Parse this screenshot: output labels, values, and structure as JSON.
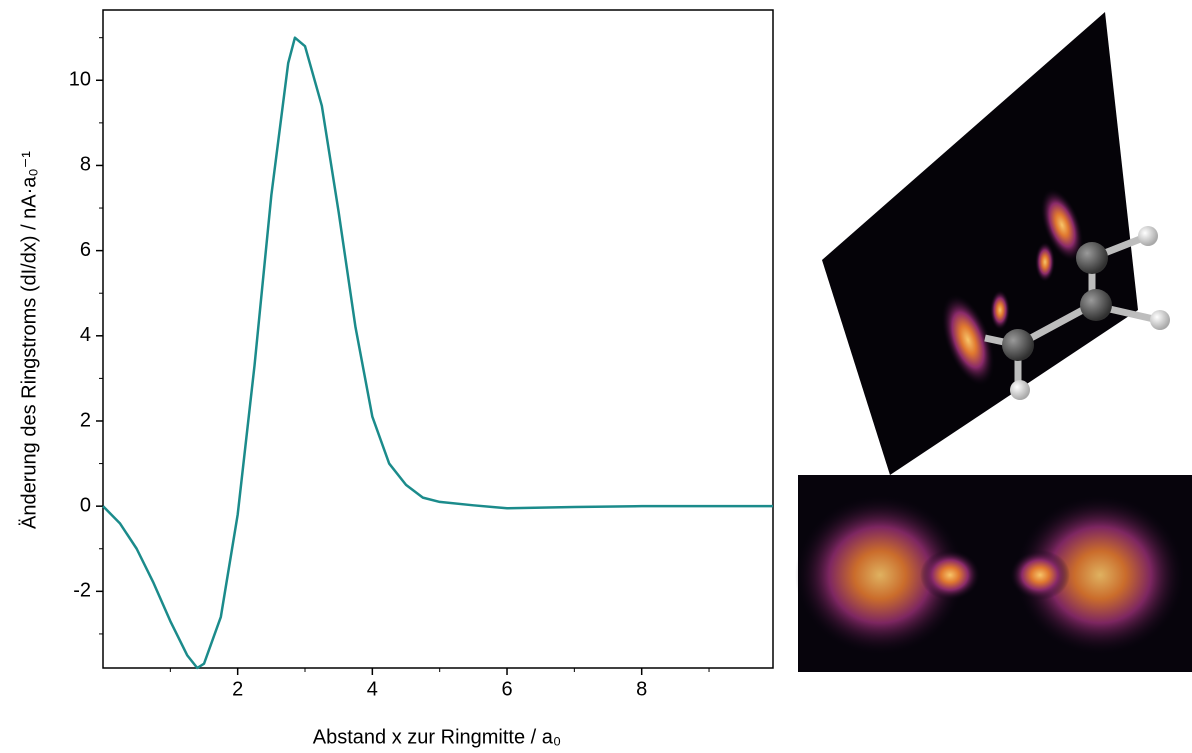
{
  "chart_data": {
    "type": "line",
    "x_label": "Abstand x zur Ringmitte / a₀",
    "y_label": "Änderung des Ringstroms (dI/dx) / nA·a₀⁻¹",
    "x": [
      0,
      0.25,
      0.5,
      0.75,
      1.0,
      1.25,
      1.4,
      1.5,
      1.75,
      2.0,
      2.25,
      2.5,
      2.75,
      2.85,
      3.0,
      3.25,
      3.5,
      3.75,
      4.0,
      4.25,
      4.5,
      4.75,
      5.0,
      5.5,
      6.0,
      7.0,
      8.0,
      9.0,
      9.95
    ],
    "series": [
      {
        "color": "#1b8b8b",
        "values": [
          0,
          -0.4,
          -1.0,
          -1.8,
          -2.7,
          -3.5,
          -3.8,
          -3.7,
          -2.6,
          -0.2,
          3.3,
          7.3,
          10.4,
          11.0,
          10.8,
          9.4,
          6.9,
          4.2,
          2.1,
          1.0,
          0.5,
          0.2,
          0.1,
          0.02,
          -0.05,
          -0.02,
          0,
          0,
          0
        ]
      }
    ],
    "xlim": [
      0,
      9.95
    ],
    "ylim": [
      -3.8,
      11.65
    ],
    "xticks": [
      2,
      4,
      6,
      8
    ],
    "yticks": [
      -2,
      0,
      2,
      4,
      6,
      8,
      10
    ],
    "xticks_minor": [
      1,
      3,
      5,
      7,
      9
    ],
    "yticks_minor": [
      -3,
      -1,
      1,
      3,
      5,
      7,
      9,
      11
    ]
  }
}
